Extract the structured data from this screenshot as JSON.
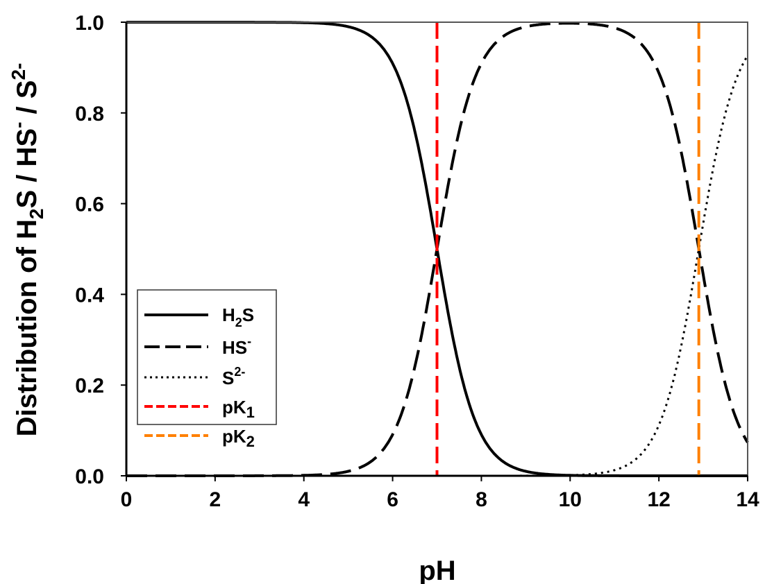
{
  "chart_data": {
    "type": "line",
    "title": "",
    "xlabel": "pH",
    "ylabel_parts": [
      "Distribution of H",
      "2",
      "S / HS",
      "-",
      " / S",
      "2-"
    ],
    "xlim": [
      0,
      14
    ],
    "ylim": [
      0,
      1
    ],
    "xticks": [
      "0",
      "2",
      "4",
      "6",
      "8",
      "10",
      "12",
      "14"
    ],
    "yticks": [
      "0.0",
      "0.2",
      "0.4",
      "0.6",
      "0.8",
      "1.0"
    ],
    "grid": false,
    "legend_position": "lower-left",
    "pK1": 7.0,
    "pK2": 12.9,
    "x": [
      0,
      1,
      2,
      3,
      4,
      5,
      6,
      7,
      8,
      9,
      10,
      11,
      12,
      13,
      14
    ],
    "series": [
      {
        "name": "H2S",
        "label": "H",
        "sub": "2",
        "label2": "S",
        "style": "solid",
        "color": "#000000",
        "values": [
          1.0,
          1.0,
          1.0,
          1.0,
          0.999,
          0.99,
          0.909,
          0.5,
          0.091,
          0.01,
          0.001,
          0.0,
          0.0,
          0.0,
          0.0
        ]
      },
      {
        "name": "HS-",
        "label": "HS",
        "sup": "-",
        "style": "dashed",
        "color": "#000000",
        "values": [
          0.0,
          0.0,
          0.0,
          0.0,
          0.001,
          0.01,
          0.091,
          0.5,
          0.909,
          0.99,
          0.998,
          0.987,
          0.888,
          0.443,
          0.074
        ]
      },
      {
        "name": "S2-",
        "label": "S",
        "sup": "2-",
        "style": "dotted",
        "color": "#000000",
        "values": [
          0,
          0,
          0,
          0,
          0,
          0,
          0,
          0,
          0,
          0,
          0.001,
          0.012,
          0.112,
          0.557,
          0.926
        ]
      },
      {
        "name": "pK1",
        "label": "pK",
        "sub": "1",
        "style": "dashed",
        "color": "#ff0000",
        "vertical_at": 7.0
      },
      {
        "name": "pK2",
        "label": "pK",
        "sub": "2",
        "style": "dashed",
        "color": "#ff8000",
        "vertical_at": 12.9
      }
    ]
  }
}
